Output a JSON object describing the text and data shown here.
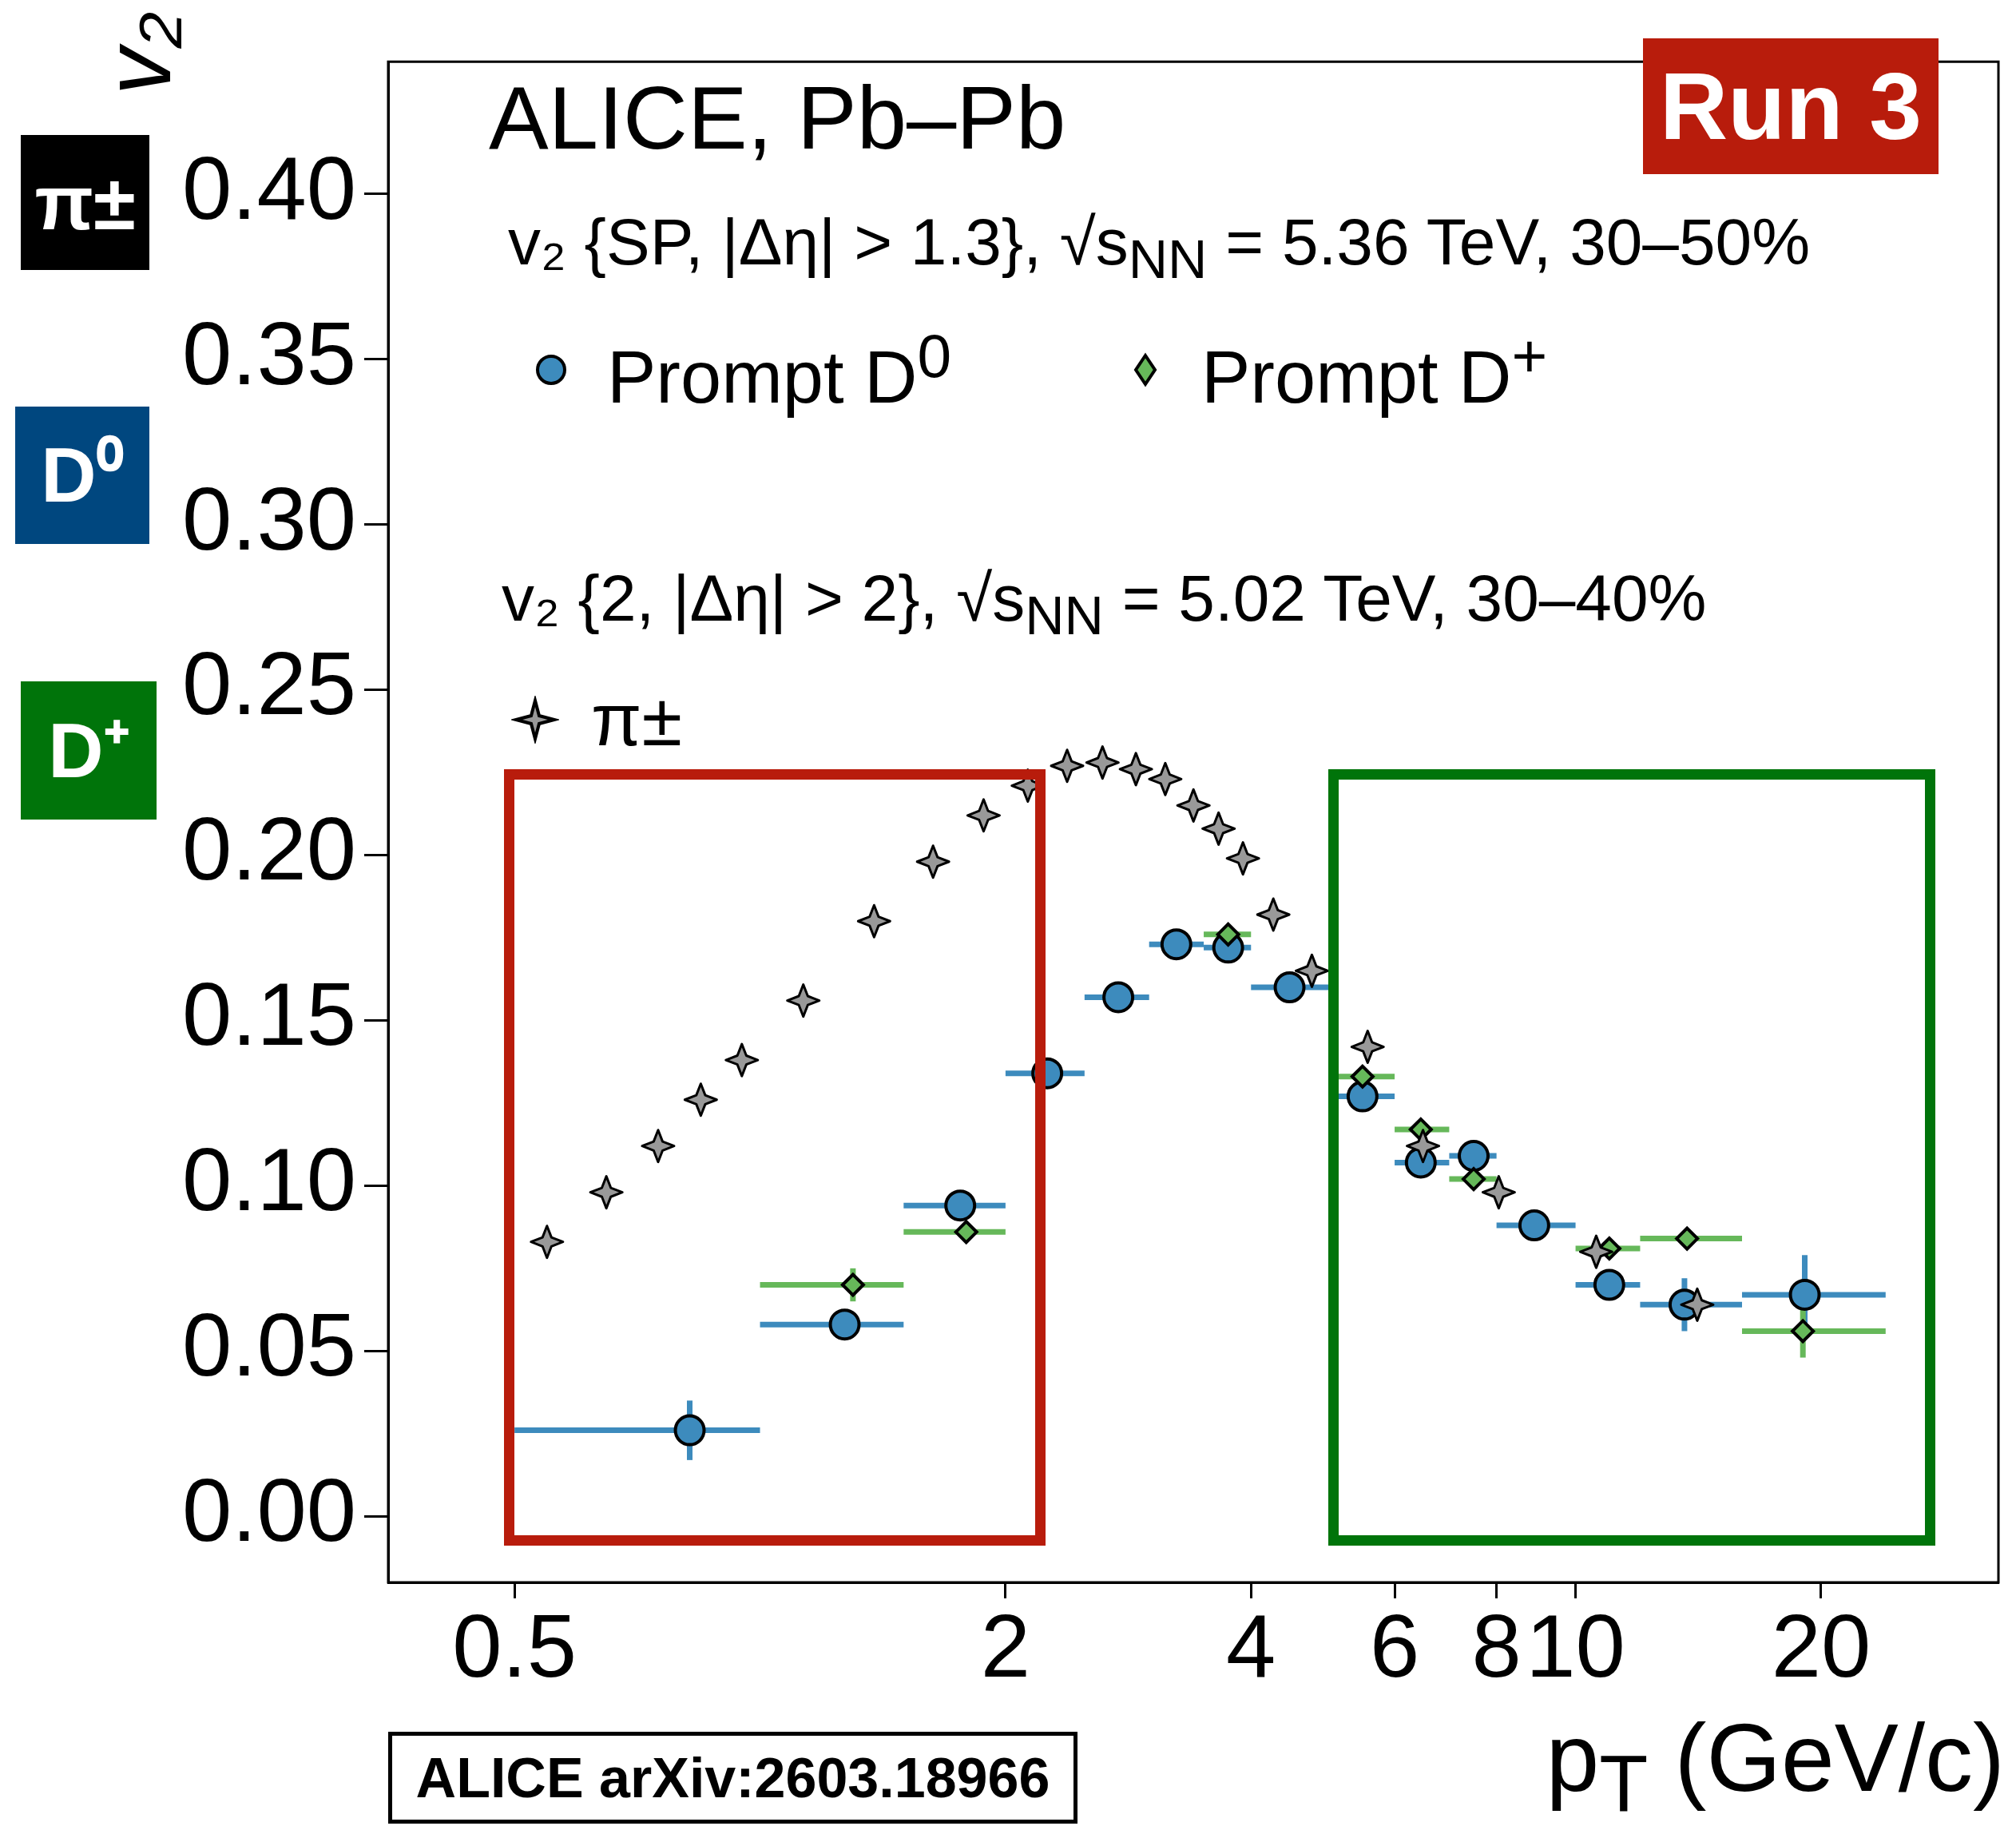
{
  "chart_data": {
    "type": "scatter",
    "title": "ALICE, Pb–Pb",
    "xlabel": "p$_{T}$ (GeV/c)",
    "ylabel": "v₂",
    "log": "x",
    "xlim": [
      0.35,
      33
    ],
    "xticks": [
      0.5,
      2,
      4,
      6,
      8,
      10,
      20
    ],
    "ylim": [
      -0.02,
      0.44
    ],
    "yticks": [
      {
        "value": 0,
        "label": "0.00"
      },
      {
        "value": 0.05,
        "label": "0.05"
      },
      {
        "value": 0.1,
        "label": "0.10"
      },
      {
        "value": 0.15,
        "label": "0.15"
      },
      {
        "value": 0.2,
        "label": "0.20"
      },
      {
        "value": 0.25,
        "label": "0.25"
      },
      {
        "value": 0.3,
        "label": "0.30"
      },
      {
        "value": 0.35,
        "label": "0.35"
      },
      {
        "value": 0.4,
        "label": "0.40"
      }
    ],
    "grid": false,
    "legend": "top left",
    "series": [
      {
        "name": "Prompt D$^{0}$",
        "color": "#3d8bbd",
        "marker": "circle",
        "x": [
          0.82,
          1.27,
          1.76,
          2.25,
          2.75,
          3.24,
          3.75,
          4.46,
          5.48,
          6.46,
          7.5,
          8.9,
          11.0,
          13.6,
          19.1
        ],
        "values": [
          0.026,
          0.058,
          0.094,
          0.134,
          0.157,
          0.173,
          0.172,
          0.16,
          0.127,
          0.107,
          0.109,
          0.088,
          0.07,
          0.064,
          0.067
        ],
        "errors": [
          0.009,
          null,
          null,
          null,
          null,
          null,
          null,
          null,
          null,
          null,
          null,
          null,
          null,
          0.008,
          0.012
        ],
        "xerrors": [
          [
            0.5,
            1
          ],
          [
            1,
            1.5
          ],
          [
            1.5,
            2
          ],
          [
            2,
            2.5
          ],
          [
            2.5,
            3
          ],
          [
            3,
            3.5
          ],
          [
            3.5,
            4
          ],
          [
            4,
            5
          ],
          [
            5,
            6
          ],
          [
            6,
            7
          ],
          [
            7,
            8
          ],
          [
            8,
            10
          ],
          [
            10,
            12
          ],
          [
            12,
            16
          ],
          [
            16,
            24
          ]
        ]
      },
      {
        "name": "Prompt D$^{+}$",
        "color": "#66b85a",
        "marker": "diamond",
        "x": [
          1.3,
          1.79,
          2.25,
          2.75,
          3.24,
          3.75,
          4.46,
          5.48,
          6.46,
          7.5,
          8.9,
          11.0,
          13.7,
          19.0
        ],
        "values": [
          0.07,
          0.086,
          null,
          null,
          null,
          0.176,
          null,
          0.133,
          0.117,
          0.102,
          null,
          0.081,
          0.084,
          0.056
        ],
        "errors": [
          0.005,
          null,
          null,
          null,
          null,
          null,
          null,
          null,
          null,
          null,
          null,
          null,
          null,
          0.008
        ],
        "xerrors": [
          [
            1,
            1.5
          ],
          [
            1.5,
            2
          ],
          null,
          null,
          null,
          [
            3.5,
            4
          ],
          null,
          [
            5,
            6
          ],
          [
            6,
            7
          ],
          [
            7,
            8
          ],
          null,
          [
            10,
            12
          ],
          [
            12,
            16
          ],
          [
            16,
            24
          ]
        ]
      },
      {
        "name": "π±",
        "color": "#999999",
        "marker": "star",
        "x": [
          0.548,
          0.648,
          0.75,
          0.846,
          0.95,
          1.13,
          1.38,
          1.63,
          1.88,
          2.13,
          2.38,
          2.63,
          2.89,
          3.14,
          3.4,
          3.65,
          3.91,
          4.26,
          4.75,
          5.56,
          6.5,
          8.05,
          10.6,
          14.1
        ],
        "values": [
          0.083,
          0.098,
          0.112,
          0.126,
          0.138,
          0.156,
          0.18,
          0.198,
          0.212,
          0.221,
          0.227,
          0.228,
          0.226,
          0.223,
          0.215,
          0.208,
          0.199,
          0.182,
          0.165,
          0.142,
          0.112,
          0.098,
          0.08,
          0.064
        ]
      }
    ],
    "annotations": [
      "Run 3",
      "v₂ {SP, |Δη| > 1.3},  √s$_{NN}$ = 5.36 TeV, 30–50%",
      "v₂ {2, |Δη| > 2},  √s$_{NN}$ = 5.02 TeV, 30–40%",
      "π±",
      "D⁰",
      "D⁺",
      "ALICE arXiv:2603.18966"
    ]
  }
}
